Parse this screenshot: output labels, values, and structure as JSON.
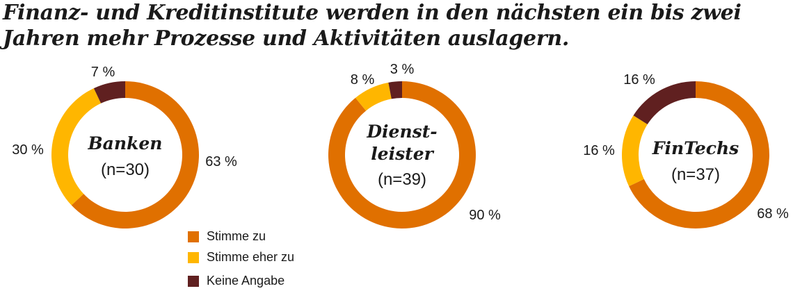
{
  "title_lines": [
    "Finanz- und Kreditinstitute werden in den nächsten ein bis zwei",
    "Jahren mehr Prozesse und Aktivitäten auslagern."
  ],
  "colors": {
    "stimme_zu": "#E07000",
    "stimme_eher_zu": "#FFB600",
    "keine_angabe": "#602020"
  },
  "legend": [
    {
      "label": "Stimme zu",
      "color": "#E07000"
    },
    {
      "label": "Stimme eher zu",
      "color": "#FFB600"
    },
    {
      "label": "Keine Angabe",
      "color": "#602020"
    }
  ],
  "chart_data": [
    {
      "type": "pie",
      "center_lines": [
        "Banken"
      ],
      "sample": "(n=30)",
      "categories": [
        "Stimme zu",
        "Stimme eher zu",
        "Keine Angabe"
      ],
      "values": [
        63,
        30,
        7
      ],
      "labels": [
        "63 %",
        "30 %",
        "7 %"
      ]
    },
    {
      "type": "pie",
      "center_lines": [
        "Dienst-",
        "leister"
      ],
      "sample": "(n=39)",
      "categories": [
        "Stimme zu",
        "Stimme eher zu",
        "Keine Angabe"
      ],
      "values": [
        90,
        8,
        3
      ],
      "labels": [
        "90 %",
        "8 %",
        "3 %"
      ]
    },
    {
      "type": "pie",
      "center_lines": [
        "FinTechs"
      ],
      "sample": "(n=37)",
      "categories": [
        "Stimme zu",
        "Stimme eher zu",
        "Keine Angabe"
      ],
      "values": [
        68,
        16,
        16
      ],
      "labels": [
        "68 %",
        "16 %",
        "16 %"
      ]
    }
  ]
}
